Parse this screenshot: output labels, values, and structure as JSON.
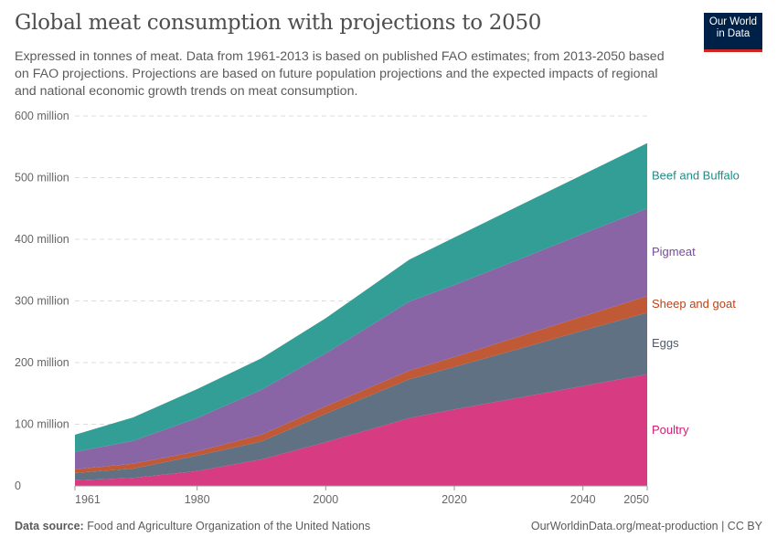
{
  "title": "Global meat consumption with projections to 2050",
  "subtitle": "Expressed in tonnes of meat. Data from 1961-2013 is based on published FAO estimates; from 2013-2050 based on FAO projections. Projections are based on future population projections and the expected impacts of regional and national economic growth trends on meat consumption.",
  "logo": {
    "line1": "Our World",
    "line2": "in Data"
  },
  "footer": {
    "source_label": "Data source:",
    "source": "Food and Agriculture Organization of the United Nations",
    "url": "OurWorldinData.org/meat-production | CC BY"
  },
  "chart_data": {
    "type": "area",
    "stacked": true,
    "title": "Global meat consumption with projections to 2050",
    "xlabel": "",
    "ylabel": "",
    "xlim": [
      1961,
      2050
    ],
    "ylim": [
      0,
      600000000
    ],
    "grid": true,
    "x_ticks": [
      "1961",
      "1980",
      "2000",
      "2020",
      "2040",
      "2050"
    ],
    "y_ticks": [
      {
        "v": 0,
        "label": "0"
      },
      {
        "v": 100000000,
        "label": "100 million"
      },
      {
        "v": 200000000,
        "label": "200 million"
      },
      {
        "v": 300000000,
        "label": "300 million"
      },
      {
        "v": 400000000,
        "label": "400 million"
      },
      {
        "v": 500000000,
        "label": "500 million"
      },
      {
        "v": 600000000,
        "label": "600 million"
      }
    ],
    "legend": "right, inline labels",
    "x": [
      1961,
      1970,
      1980,
      1990,
      2000,
      2013,
      2020,
      2030,
      2040,
      2050
    ],
    "series": [
      {
        "name": "Poultry",
        "color": "#d73c82",
        "label_color": "#d01e72",
        "values": [
          9,
          13,
          24,
          43,
          71,
          110,
          124,
          143,
          162,
          181
        ]
      },
      {
        "name": "Eggs",
        "color": "#5f7182",
        "label_color": "#4c5b6e",
        "values": [
          12,
          15,
          25,
          29,
          46,
          63,
          69,
          79,
          90,
          100
        ]
      },
      {
        "name": "Sheep and goat",
        "color": "#c05a36",
        "label_color": "#b7441b",
        "values": [
          6,
          8,
          7,
          11,
          12,
          14,
          16,
          20,
          23,
          27
        ]
      },
      {
        "name": "Pigmeat",
        "color": "#8a65a6",
        "label_color": "#7a4a9d",
        "values": [
          28,
          37,
          54,
          73,
          86,
          112,
          117,
          125,
          134,
          142
        ]
      },
      {
        "name": "Beef and Buffalo",
        "color": "#339e96",
        "label_color": "#1f8c84",
        "values": [
          28,
          38,
          47,
          51,
          57,
          68,
          77,
          87,
          96,
          106
        ]
      }
    ],
    "value_unit": "million tonnes"
  }
}
